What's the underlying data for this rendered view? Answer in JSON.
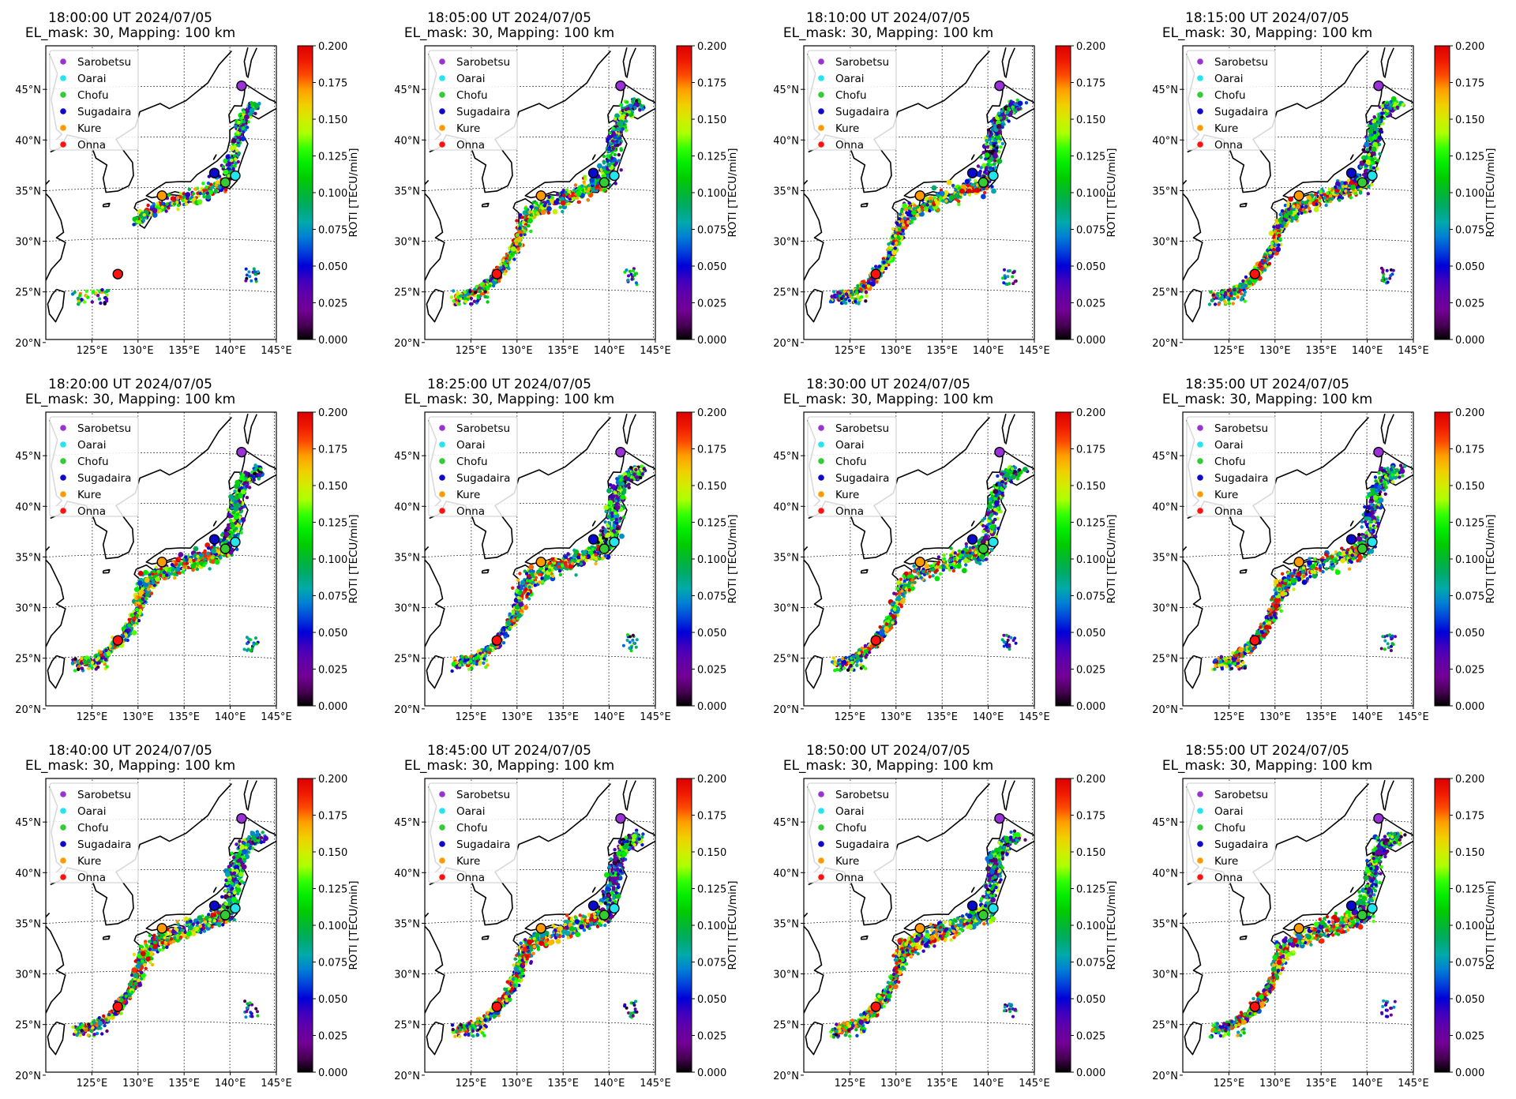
{
  "figure": {
    "subtitle": "EL_mask: 30, Mapping: 100 km",
    "lat_ticks": [
      "20°N",
      "25°N",
      "30°N",
      "35°N",
      "40°N",
      "45°N"
    ],
    "lon_ticks": [
      "125°E",
      "130°E",
      "135°E",
      "140°E",
      "145°E"
    ],
    "colorbar": {
      "label": "ROTI [TECU/min]",
      "ticks": [
        "0.000",
        "0.025",
        "0.050",
        "0.075",
        "0.100",
        "0.125",
        "0.150",
        "0.175",
        "0.200"
      ],
      "range": [
        0.0,
        0.2
      ],
      "colormap": "nipy_spectral-like (black→purple→blue→cyan→green→yellow→orange→red)"
    },
    "legend": [
      {
        "name": "Sarobetsu",
        "color": "#9b30d9"
      },
      {
        "name": "Oarai",
        "color": "#22e5ee"
      },
      {
        "name": "Chofu",
        "color": "#33cc33"
      },
      {
        "name": "Sugadaira",
        "color": "#0a0acc"
      },
      {
        "name": "Kure",
        "color": "#ff9900"
      },
      {
        "name": "Onna",
        "color": "#ff1111"
      }
    ]
  },
  "chart_data": [
    {
      "type": "scatter",
      "title": "18:00:00 UT 2024/07/05",
      "coverage": "partial"
    },
    {
      "type": "scatter",
      "title": "18:05:00 UT 2024/07/05",
      "coverage": "full"
    },
    {
      "type": "scatter",
      "title": "18:10:00 UT 2024/07/05",
      "coverage": "full"
    },
    {
      "type": "scatter",
      "title": "18:15:00 UT 2024/07/05",
      "coverage": "full"
    },
    {
      "type": "scatter",
      "title": "18:20:00 UT 2024/07/05",
      "coverage": "full"
    },
    {
      "type": "scatter",
      "title": "18:25:00 UT 2024/07/05",
      "coverage": "full"
    },
    {
      "type": "scatter",
      "title": "18:30:00 UT 2024/07/05",
      "coverage": "full"
    },
    {
      "type": "scatter",
      "title": "18:35:00 UT 2024/07/05",
      "coverage": "full"
    },
    {
      "type": "scatter",
      "title": "18:40:00 UT 2024/07/05",
      "coverage": "full"
    },
    {
      "type": "scatter",
      "title": "18:45:00 UT 2024/07/05",
      "coverage": "full"
    },
    {
      "type": "scatter",
      "title": "18:50:00 UT 2024/07/05",
      "coverage": "full"
    },
    {
      "type": "scatter",
      "title": "18:55:00 UT 2024/07/05",
      "coverage": "full"
    }
  ]
}
